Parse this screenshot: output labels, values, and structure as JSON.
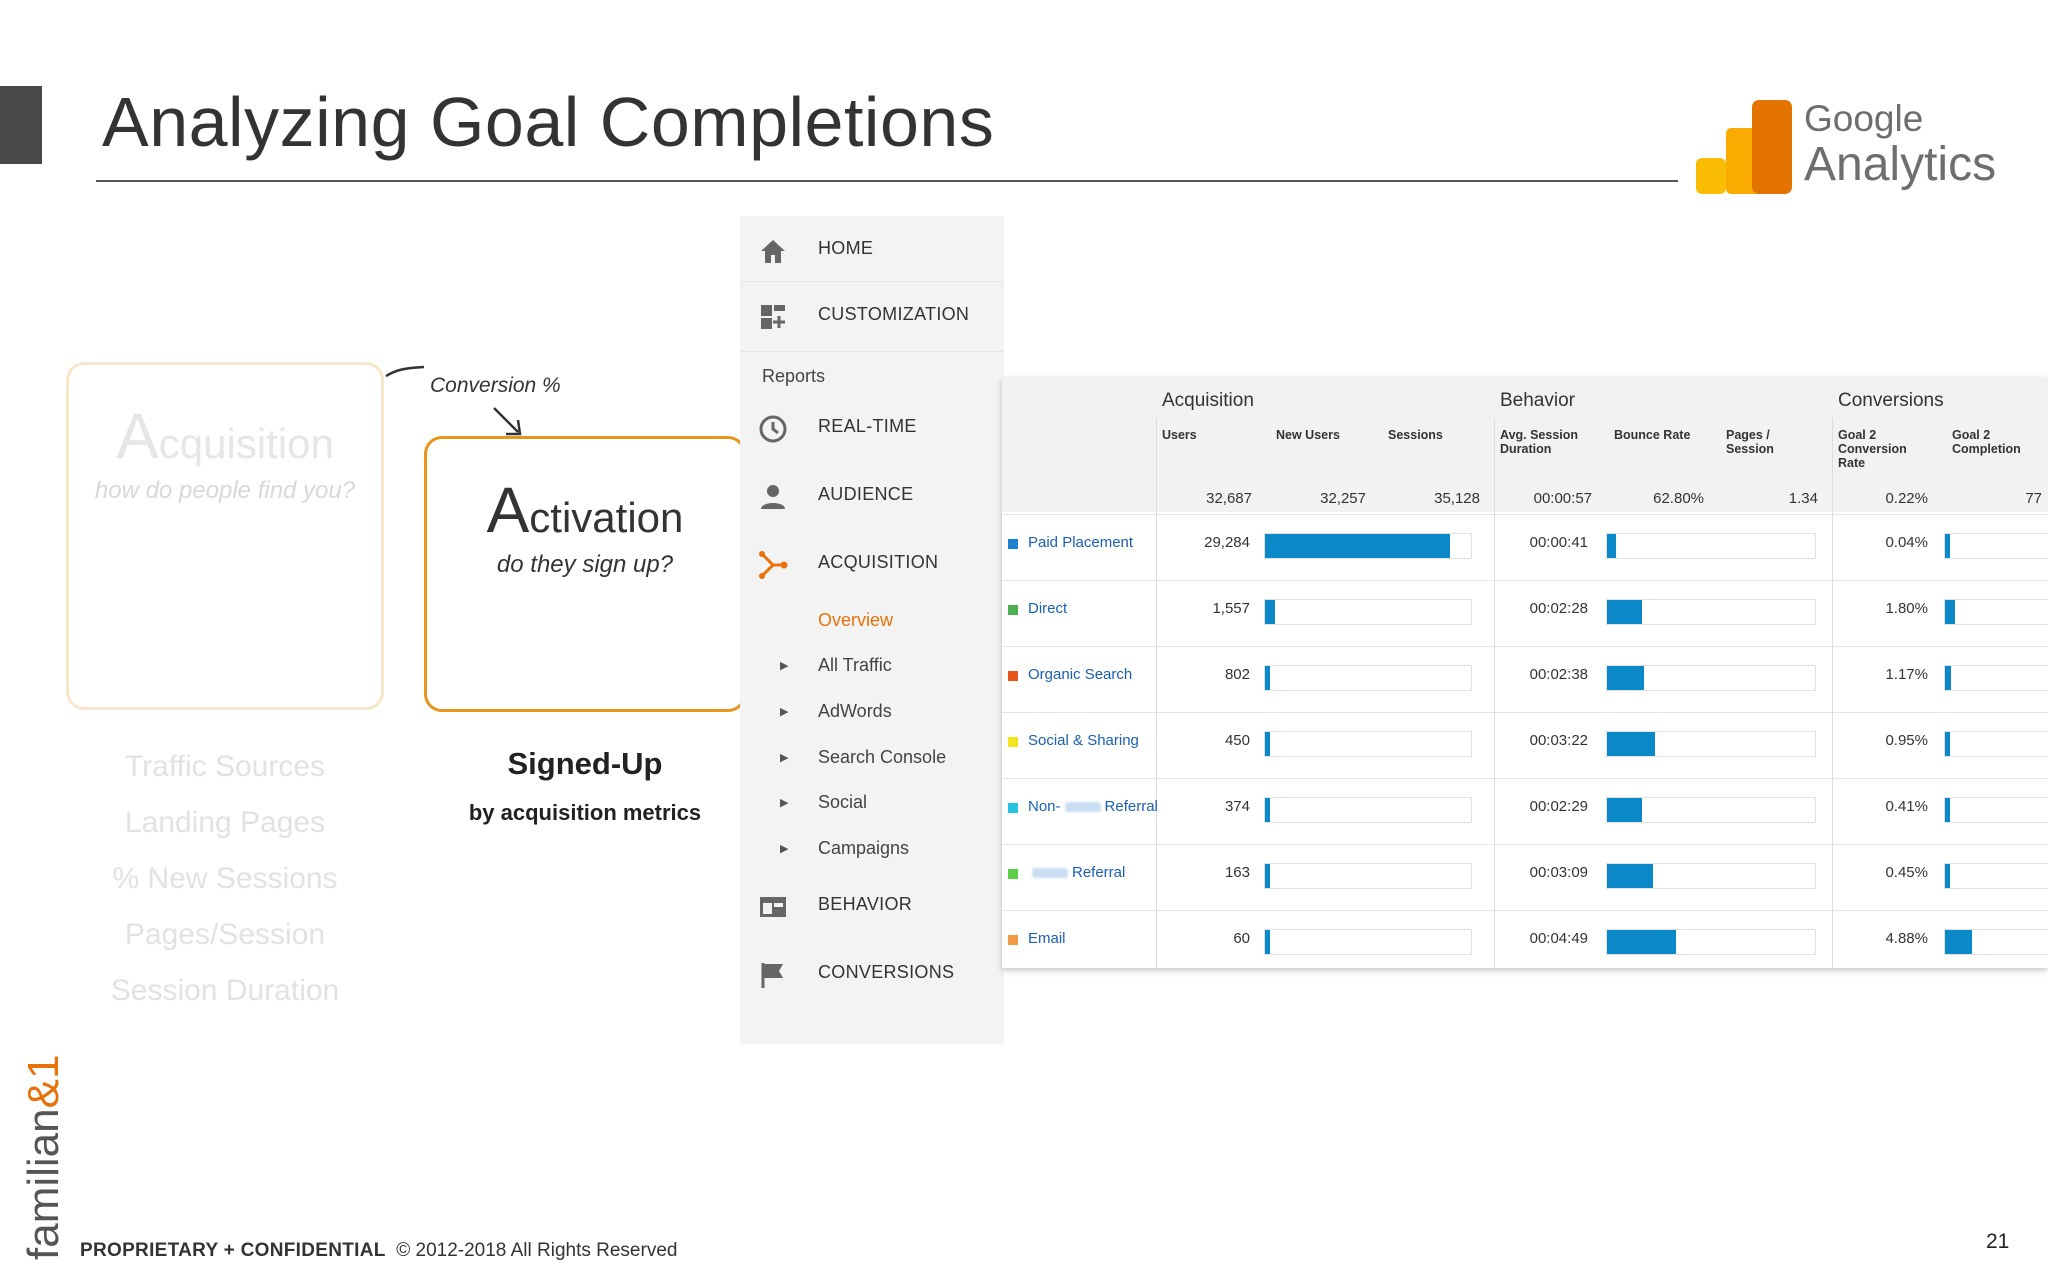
{
  "slide": {
    "title": "Analyzing Goal Completions",
    "logo": {
      "line1": "Google",
      "line2": "Analytics",
      "colors": [
        "#f9ab00",
        "#e37400",
        "#fbbc04"
      ]
    },
    "footer_bold": "PROPRIETARY + CONFIDENTIAL",
    "footer_rest": "© 2012-2018 All Rights Reserved",
    "page_number": "21",
    "brand": "familian&1",
    "colors": {
      "accent_orange": "#e8951c",
      "ga_orange": "#e8710a",
      "bar_blue": "#0a88c8",
      "link_blue": "#1a5fb4"
    }
  },
  "funnel": {
    "acquisition": {
      "cap": "A",
      "rest": "cquisition",
      "subtitle": "how do people find you?"
    },
    "conversion_label": "Conversion %",
    "activation": {
      "cap": "A",
      "rest": "ctivation",
      "subtitle": "do they sign up?"
    },
    "acq_metrics": [
      "Traffic Sources",
      "Landing Pages",
      "% New Sessions",
      "Pages/Session",
      "Session Duration"
    ],
    "signed_up": {
      "title": "Signed-Up",
      "subtitle": "by acquisition metrics"
    }
  },
  "sidebar": {
    "top_items": [
      {
        "label": "HOME",
        "icon": "home-icon"
      },
      {
        "label": "CUSTOMIZATION",
        "icon": "dashboard-icon"
      }
    ],
    "reports_heading": "Reports",
    "report_items": [
      {
        "label": "REAL-TIME",
        "icon": "clock-icon"
      },
      {
        "label": "AUDIENCE",
        "icon": "person-icon"
      },
      {
        "label": "ACQUISITION",
        "icon": "acquisition-icon",
        "active": true
      }
    ],
    "acquisition_sub": [
      {
        "label": "Overview",
        "active": true
      },
      {
        "label": "All Traffic"
      },
      {
        "label": "AdWords"
      },
      {
        "label": "Search Console"
      },
      {
        "label": "Social"
      },
      {
        "label": "Campaigns"
      }
    ],
    "bottom_items": [
      {
        "label": "BEHAVIOR",
        "icon": "behavior-icon"
      },
      {
        "label": "CONVERSIONS",
        "icon": "flag-icon"
      }
    ]
  },
  "table": {
    "groups": [
      "Acquisition",
      "Behavior",
      "Conversions"
    ],
    "columns": {
      "users": "Users",
      "new_users": "New Users",
      "sessions": "Sessions",
      "avg_session_duration": "Avg. Session Duration",
      "bounce_rate": "Bounce Rate",
      "pages_session": "Pages / Session",
      "goal2_conv_rate": "Goal 2 Conversion Rate",
      "goal2_completion": "Goal 2 Completion"
    },
    "totals": {
      "users": "32,687",
      "new_users": "32,257",
      "sessions": "35,128",
      "avg": "00:00:57",
      "bounce": "62.80%",
      "pages": "1.34",
      "conv": "0.22%",
      "completion": "77"
    },
    "rows": [
      {
        "label": "Paid Placement",
        "color": "#1c7fd0",
        "users": "29,284",
        "users_bar": 0.896,
        "duration": "00:00:41",
        "duration_bar": 0.042,
        "conv": "0.04%",
        "conv_bar": 0.02
      },
      {
        "label": "Direct",
        "color": "#4caf50",
        "users": "1,557",
        "users_bar": 0.048,
        "duration": "00:02:28",
        "duration_bar": 0.17,
        "conv": "1.80%",
        "conv_bar": 0.09
      },
      {
        "label": "Organic Search",
        "color": "#e8541e",
        "users": "802",
        "users_bar": 0.025,
        "duration": "00:02:38",
        "duration_bar": 0.18,
        "conv": "1.17%",
        "conv_bar": 0.06
      },
      {
        "label": "Social & Sharing",
        "color": "#f2e51f",
        "users": "450",
        "users_bar": 0.014,
        "duration": "00:03:22",
        "duration_bar": 0.23,
        "conv": "0.95%",
        "conv_bar": 0.05
      },
      {
        "label_pre": "Non-",
        "label_post": "Referral",
        "color": "#27c3e0",
        "users": "374",
        "users_bar": 0.011,
        "duration": "00:02:29",
        "duration_bar": 0.17,
        "conv": "0.41%",
        "conv_bar": 0.02
      },
      {
        "label_pre": "",
        "label_post": "Referral",
        "color": "#5ccf4a",
        "users": "163",
        "users_bar": 0.005,
        "duration": "00:03:09",
        "duration_bar": 0.22,
        "conv": "0.45%",
        "conv_bar": 0.02
      },
      {
        "label": "Email",
        "color": "#f09a4a",
        "users": "60",
        "users_bar": 0.002,
        "duration": "00:04:49",
        "duration_bar": 0.33,
        "conv": "4.88%",
        "conv_bar": 0.25
      }
    ]
  }
}
